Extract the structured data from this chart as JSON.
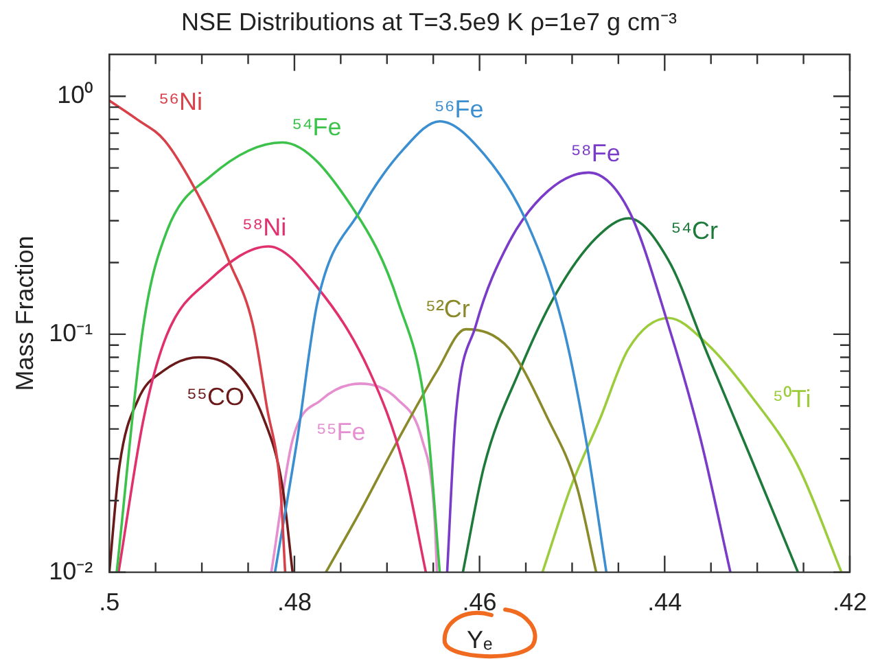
{
  "chart_data": {
    "type": "line",
    "title": "NSE Distributions at T=3.5e9 K ρ=1e7 g cm⁻³",
    "xlabel": "Yₑ",
    "ylabel": "Mass Fraction",
    "log": "y",
    "grid": false,
    "legend": false,
    "marker": "none",
    "line_style": "solid",
    "xlim": [
      0.5,
      0.42
    ],
    "xticks": [
      {
        "value": 0.5,
        "label": ".5"
      },
      {
        "value": 0.495,
        "label": null
      },
      {
        "value": 0.49,
        "label": null
      },
      {
        "value": 0.485,
        "label": null
      },
      {
        "value": 0.48,
        "label": ".48"
      },
      {
        "value": 0.475,
        "label": null
      },
      {
        "value": 0.47,
        "label": null
      },
      {
        "value": 0.465,
        "label": null
      },
      {
        "value": 0.46,
        "label": ".46"
      },
      {
        "value": 0.455,
        "label": null
      },
      {
        "value": 0.45,
        "label": null
      },
      {
        "value": 0.445,
        "label": null
      },
      {
        "value": 0.44,
        "label": ".44"
      },
      {
        "value": 0.435,
        "label": null
      },
      {
        "value": 0.43,
        "label": null
      },
      {
        "value": 0.425,
        "label": null
      },
      {
        "value": 0.42,
        "label": ".42"
      }
    ],
    "ylim": [
      0.01,
      1.5
    ],
    "yticks": [
      {
        "value": 0.01,
        "label": "10⁻²"
      },
      {
        "value": 0.02,
        "label": null
      },
      {
        "value": 0.03,
        "label": null
      },
      {
        "value": 0.04,
        "label": null
      },
      {
        "value": 0.05,
        "label": null
      },
      {
        "value": 0.06,
        "label": null
      },
      {
        "value": 0.07,
        "label": null
      },
      {
        "value": 0.08,
        "label": null
      },
      {
        "value": 0.09,
        "label": null
      },
      {
        "value": 0.1,
        "label": "10⁻¹"
      },
      {
        "value": 0.2,
        "label": null
      },
      {
        "value": 0.3,
        "label": null
      },
      {
        "value": 0.4,
        "label": null
      },
      {
        "value": 0.5,
        "label": null
      },
      {
        "value": 0.6,
        "label": null
      },
      {
        "value": 0.7,
        "label": null
      },
      {
        "value": 0.8,
        "label": null
      },
      {
        "value": 0.9,
        "label": null
      },
      {
        "value": 1,
        "label": "10⁰"
      }
    ],
    "series": [
      {
        "name": "⁵⁶Ni",
        "color": "#d8404a",
        "x": [
          0.5,
          0.497,
          0.494,
          0.49,
          0.487,
          0.4845,
          0.483,
          0.4815,
          0.481
        ],
        "values": [
          0.96,
          0.8,
          0.65,
          0.36,
          0.2,
          0.11,
          0.05,
          0.022,
          0.01
        ]
      },
      {
        "name": "⁵⁴Fe",
        "color": "#3cc24a",
        "x": [
          0.4992,
          0.4963,
          0.4938,
          0.4891,
          0.4813,
          0.4735,
          0.4688,
          0.4657,
          0.4643
        ],
        "values": [
          0.01,
          0.11,
          0.27,
          0.46,
          0.64,
          0.33,
          0.137,
          0.044,
          0.01
        ]
      },
      {
        "name": "⁵⁶Fe",
        "color": "#3b8fd0",
        "x": [
          0.4821,
          0.4797,
          0.4775,
          0.4729,
          0.4682,
          0.4643,
          0.4595,
          0.4548,
          0.451,
          0.4485,
          0.4463
        ],
        "values": [
          0.01,
          0.036,
          0.137,
          0.33,
          0.6,
          0.785,
          0.57,
          0.29,
          0.109,
          0.036,
          0.01
        ]
      },
      {
        "name": "⁵⁸Fe",
        "color": "#7a3cc8",
        "x": [
          0.4635,
          0.4626,
          0.4604,
          0.4568,
          0.4526,
          0.4482,
          0.4439,
          0.4396,
          0.4361,
          0.4329
        ],
        "values": [
          0.01,
          0.044,
          0.109,
          0.244,
          0.4,
          0.478,
          0.333,
          0.109,
          0.036,
          0.01
        ]
      },
      {
        "name": "⁵⁸Ni",
        "color": "#e0306e",
        "x": [
          0.499,
          0.4963,
          0.4938,
          0.4891,
          0.4828,
          0.4775,
          0.4719,
          0.4682,
          0.4658
        ],
        "values": [
          0.01,
          0.044,
          0.099,
          0.17,
          0.234,
          0.157,
          0.07,
          0.028,
          0.01
        ]
      },
      {
        "name": "⁵²Cr",
        "color": "#8a8a2a",
        "x": [
          0.4766,
          0.4729,
          0.4688,
          0.4646,
          0.4615,
          0.4568,
          0.4526,
          0.4495,
          0.4474
        ],
        "values": [
          0.01,
          0.018,
          0.036,
          0.07,
          0.105,
          0.087,
          0.044,
          0.023,
          0.01
        ]
      },
      {
        "name": "⁵⁴Cr",
        "color": "#1e7a3a",
        "x": [
          0.4618,
          0.4595,
          0.4557,
          0.4517,
          0.4474,
          0.4439,
          0.4396,
          0.4354,
          0.4308,
          0.4256
        ],
        "values": [
          0.01,
          0.028,
          0.07,
          0.149,
          0.254,
          0.307,
          0.205,
          0.083,
          0.031,
          0.01
        ]
      },
      {
        "name": "⁵⁵CO",
        "color": "#6b1a1a",
        "x": [
          0.5,
          0.4989,
          0.4969,
          0.4942,
          0.4903,
          0.4864,
          0.4833,
          0.4813,
          0.4802
        ],
        "values": [
          0.01,
          0.028,
          0.053,
          0.07,
          0.08,
          0.07,
          0.044,
          0.023,
          0.01
        ]
      },
      {
        "name": "⁵⁵Fe",
        "color": "#e58fd0",
        "x": [
          0.4825,
          0.4802,
          0.4771,
          0.4729,
          0.4688,
          0.4662,
          0.4649,
          0.4646
        ],
        "values": [
          0.01,
          0.036,
          0.053,
          0.062,
          0.053,
          0.036,
          0.018,
          0.01
        ]
      },
      {
        "name": "⁵⁰Ti",
        "color": "#9ccc3c",
        "x": [
          0.4532,
          0.4501,
          0.447,
          0.4439,
          0.4396,
          0.4354,
          0.4308,
          0.4256,
          0.4209
        ],
        "values": [
          0.01,
          0.023,
          0.044,
          0.087,
          0.117,
          0.091,
          0.056,
          0.028,
          0.01
        ]
      }
    ]
  }
}
